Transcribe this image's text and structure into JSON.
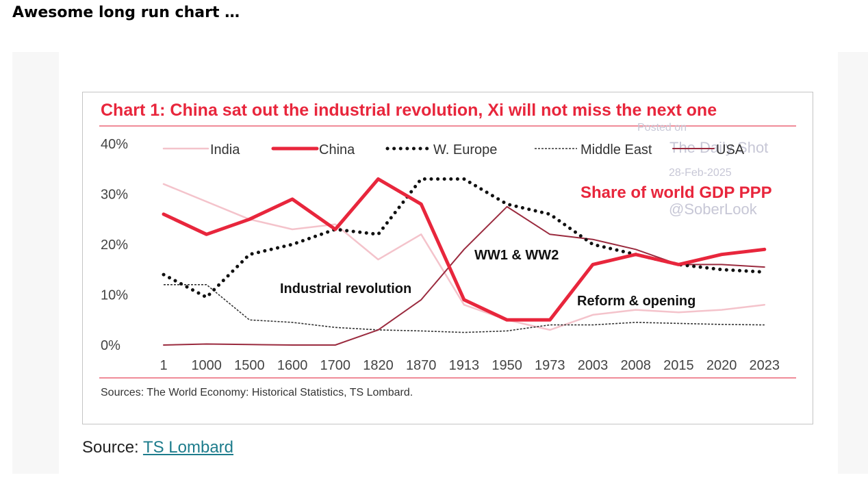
{
  "post": {
    "title": "Awesome long run chart …",
    "footer_prefix": "Source: ",
    "footer_link": "TS Lombard"
  },
  "figure": {
    "heading": "Chart 1: China sat out the industrial revolution, Xi will not miss the next one",
    "sources": "Sources: The World Economy: Historical Statistics, TS Lombard."
  },
  "watermark": {
    "line1": "Posted on",
    "line2": "The Daily Shot",
    "line3": "28-Feb-2025",
    "line4": "@SoberLook"
  },
  "chart_data": {
    "type": "line",
    "subtitle": "Share of world GDP PPP",
    "categories": [
      "1",
      "1000",
      "1500",
      "1600",
      "1700",
      "1820",
      "1870",
      "1913",
      "1950",
      "1973",
      "2003",
      "2008",
      "2015",
      "2020",
      "2023"
    ],
    "y_ticks": [
      "40%",
      "30%",
      "20%",
      "10%",
      "0%"
    ],
    "ylim": [
      0,
      40
    ],
    "legend": [
      "India",
      "China",
      "W. Europe",
      "Middle East",
      "USA"
    ],
    "legend_placement": "top",
    "series": [
      {
        "name": "India",
        "color": "#f4c3cb",
        "style": "solid-thin",
        "values": [
          32,
          null,
          25,
          23,
          24,
          17,
          22,
          8,
          5,
          3,
          6,
          7,
          6.5,
          7,
          8
        ]
      },
      {
        "name": "China",
        "color": "#e8263c",
        "style": "solid-thick",
        "values": [
          26,
          22,
          25,
          29,
          23,
          33,
          28,
          9,
          5,
          5,
          16,
          18,
          16,
          18,
          19
        ]
      },
      {
        "name": "W. Europe",
        "color": "#111111",
        "style": "dotted-thick",
        "values": [
          14,
          9.5,
          18,
          20,
          23,
          22,
          33,
          33,
          28,
          26,
          20,
          18,
          16,
          15,
          14.5
        ]
      },
      {
        "name": "Middle East",
        "color": "#333333",
        "style": "dashed-thin",
        "values": [
          12,
          12,
          5,
          4.5,
          3.5,
          3,
          2.8,
          2.5,
          2.8,
          4,
          4,
          4.5,
          4.3,
          4.1,
          4
        ]
      },
      {
        "name": "USA",
        "color": "#9a2a3e",
        "style": "solid-medium",
        "values": [
          0,
          0.2,
          0.1,
          0,
          0,
          3,
          9,
          19,
          27.5,
          22,
          21,
          19,
          16,
          16,
          15.5
        ]
      }
    ],
    "annotations": [
      "Industrial revolution",
      "WW1 & WW2",
      "Reform & opening"
    ],
    "grid": false
  }
}
